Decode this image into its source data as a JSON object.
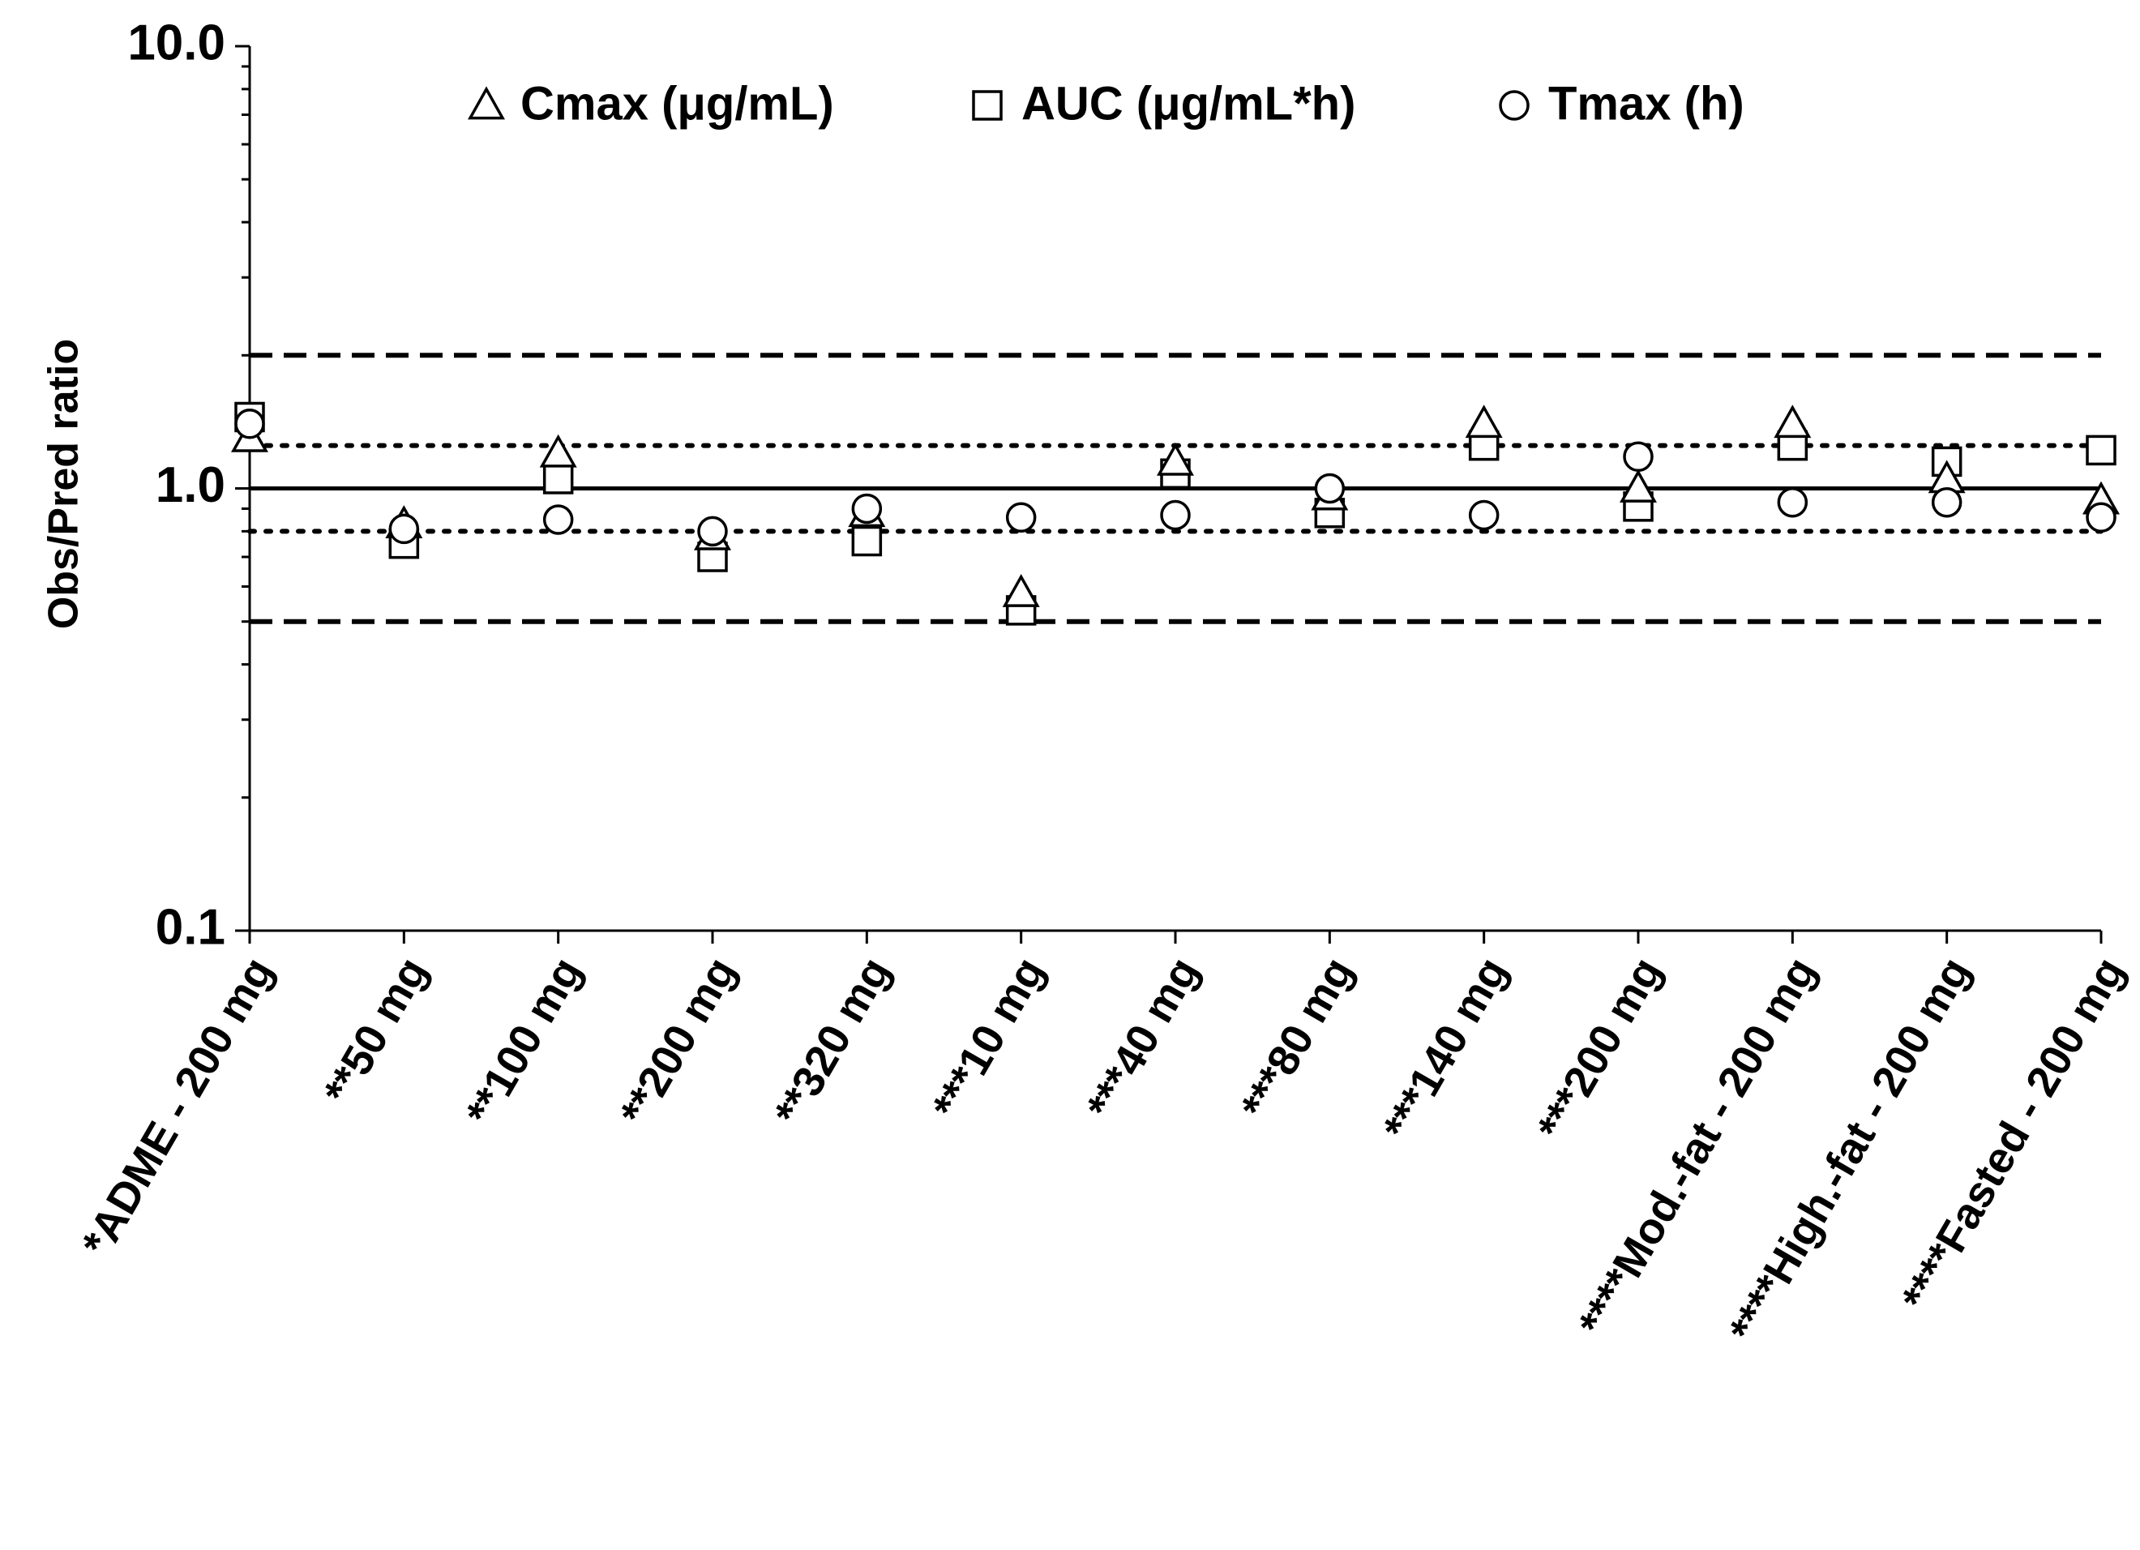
{
  "chart_data": {
    "type": "scatter",
    "ylabel": "Obs/Pred ratio",
    "yscale": "log",
    "ylim": [
      0.1,
      10
    ],
    "yticks": [
      {
        "value": 10,
        "label": "10.0"
      },
      {
        "value": 1,
        "label": "1.0"
      },
      {
        "value": 0.1,
        "label": "0.1"
      }
    ],
    "categories": [
      "*ADME - 200 mg",
      "**50 mg",
      "**100 mg",
      "**200 mg",
      "**320 mg",
      "***10 mg",
      "***40 mg",
      "***80 mg",
      "***140 mg",
      "***200 mg",
      "****Mod.-fat - 200 mg",
      "****High.-fat - 200 mg",
      "****Fasted - 200 mg"
    ],
    "series": [
      {
        "name": "Cmax (μg/mL)",
        "marker": "triangle",
        "values": [
          1.3,
          0.83,
          1.2,
          0.78,
          0.88,
          0.58,
          1.15,
          0.96,
          1.4,
          1.0,
          1.4,
          1.05,
          0.94
        ]
      },
      {
        "name": "AUC (μg/mL*h)",
        "marker": "square",
        "values": [
          1.45,
          0.75,
          1.05,
          0.7,
          0.76,
          0.53,
          1.08,
          0.88,
          1.25,
          0.91,
          1.25,
          1.15,
          1.22
        ]
      },
      {
        "name": "Tmax (h)",
        "marker": "circle",
        "values": [
          1.4,
          0.81,
          0.85,
          0.8,
          0.9,
          0.86,
          0.87,
          1.0,
          0.87,
          1.18,
          0.93,
          0.93,
          0.86
        ]
      }
    ],
    "reference_lines": [
      {
        "value": 2.0,
        "style": "dashed"
      },
      {
        "value": 1.25,
        "style": "dotted"
      },
      {
        "value": 1.0,
        "style": "solid"
      },
      {
        "value": 0.8,
        "style": "dotted"
      },
      {
        "value": 0.5,
        "style": "dashed"
      }
    ],
    "legend_position": "top",
    "grid": false
  }
}
